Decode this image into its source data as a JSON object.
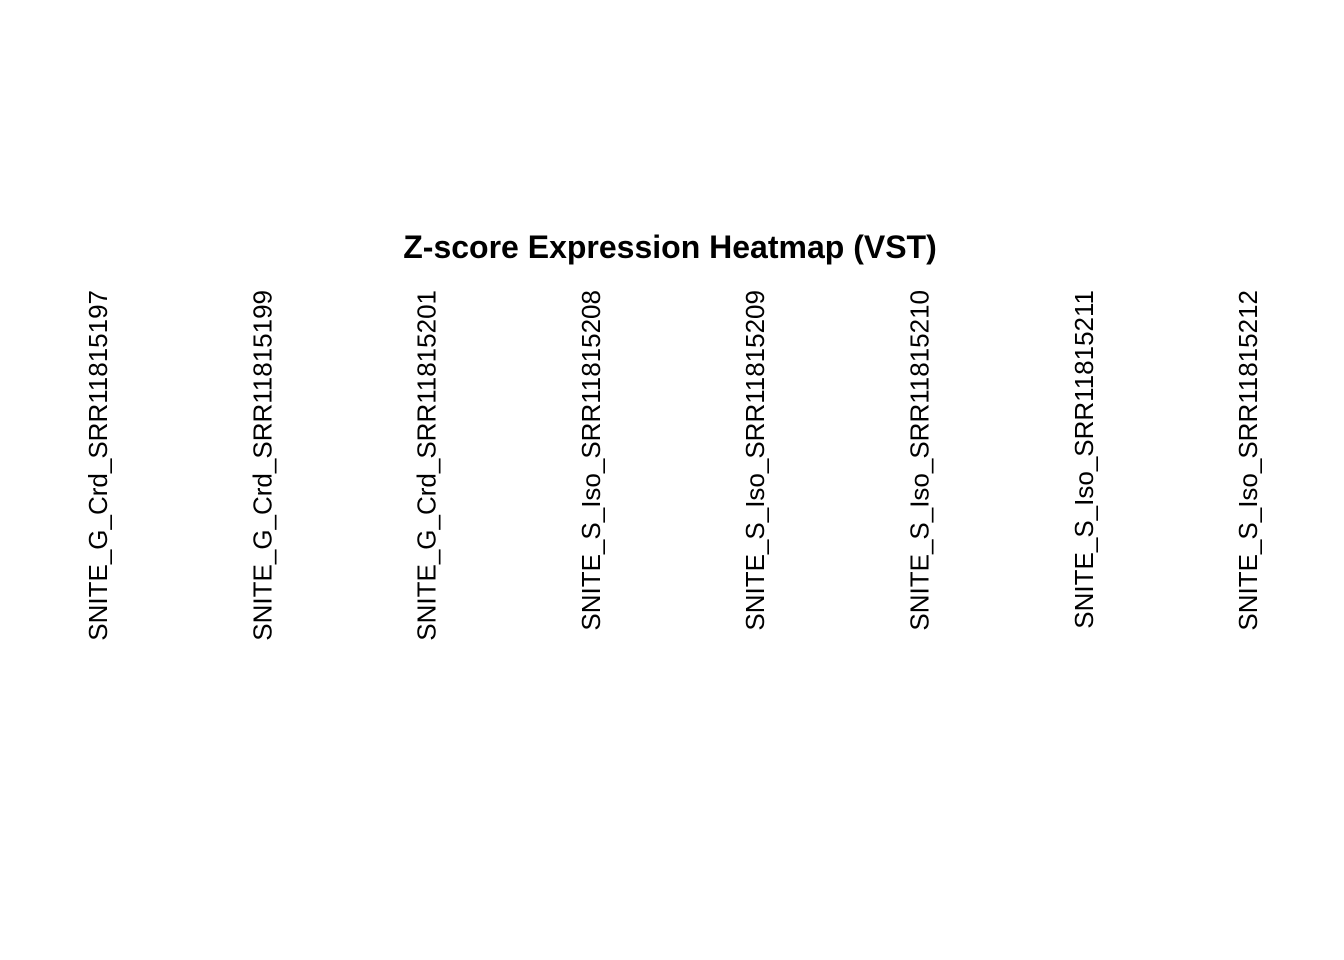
{
  "chart_data": {
    "type": "heatmap",
    "title": "Z-score Expression Heatmap (VST)",
    "columns": [
      "SNITE_G_Crd_SRR11815197",
      "SNITE_G_Crd_SRR11815199",
      "SNITE_G_Crd_SRR11815201",
      "SNITE_S_Iso_SRR11815208",
      "SNITE_S_Iso_SRR11815209",
      "SNITE_S_Iso_SRR11815210",
      "SNITE_S_Iso_SRR11815211",
      "SNITE_S_Iso_SRR11815212"
    ],
    "rows": [],
    "values": []
  }
}
